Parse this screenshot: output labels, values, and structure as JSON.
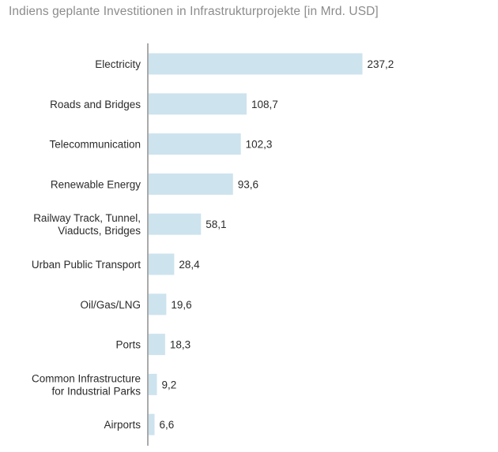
{
  "chart_data": {
    "type": "bar",
    "orientation": "horizontal",
    "title": "Indiens geplante Investitionen in Infrastrukturprojekte [in Mrd. USD]",
    "categories": [
      [
        "Electricity"
      ],
      [
        "Roads and Bridges"
      ],
      [
        "Telecommunication"
      ],
      [
        "Renewable Energy"
      ],
      [
        "Railway Track, Tunnel,",
        "Viaducts, Bridges"
      ],
      [
        "Urban Public Transport"
      ],
      [
        "Oil/Gas/LNG"
      ],
      [
        "Ports"
      ],
      [
        "Common Infrastructure",
        "for Industrial Parks"
      ],
      [
        "Airports"
      ]
    ],
    "values": [
      237.2,
      108.7,
      102.3,
      93.6,
      58.1,
      28.4,
      19.6,
      18.3,
      9.2,
      6.6
    ],
    "value_labels": [
      "237,2",
      "108,7",
      "102,3",
      "93,6",
      "58,1",
      "28,4",
      "19,6",
      "18,3",
      "9,2",
      "6,6"
    ],
    "bar_color": "#cde3ee",
    "axis_color": "#555555",
    "grid": false
  }
}
